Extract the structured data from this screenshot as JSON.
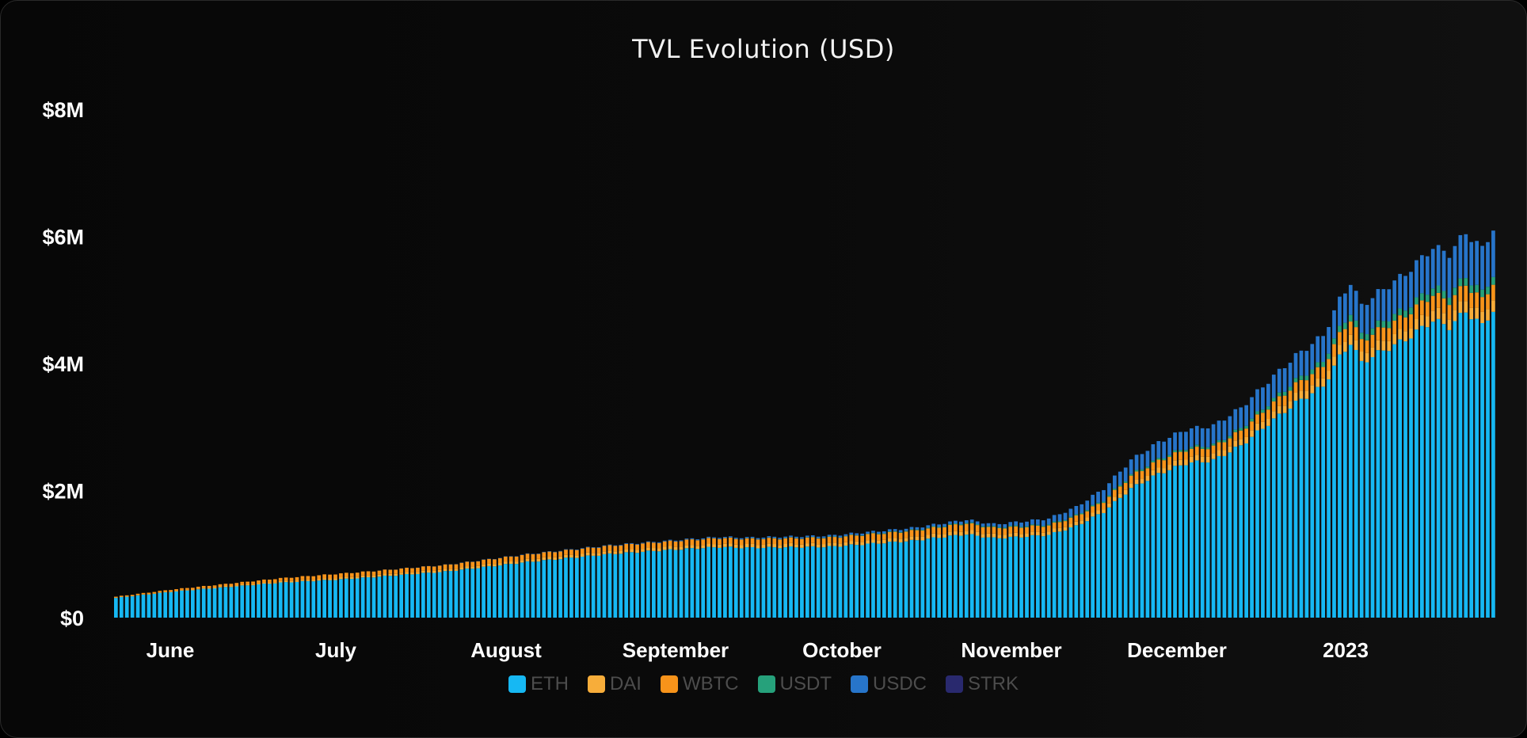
{
  "chart_data": {
    "type": "bar",
    "stacked": true,
    "title": "TVL Evolution (USD)",
    "xlabel": "",
    "ylabel": "",
    "ylim": [
      0,
      8000000
    ],
    "y_ticks": [
      0,
      2000000,
      4000000,
      6000000,
      8000000
    ],
    "y_tick_labels": [
      "$0",
      "$2M",
      "$4M",
      "$6M",
      "$8M"
    ],
    "x_tick_labels": [
      "June",
      "July",
      "August",
      "September",
      "October",
      "November",
      "December",
      "2023"
    ],
    "grid": false,
    "legend_position": "bottom",
    "n_bars": 252,
    "series": [
      {
        "name": "ETH",
        "color": "#16b8f3"
      },
      {
        "name": "DAI",
        "color": "#f7ad3a"
      },
      {
        "name": "WBTC",
        "color": "#f7931a"
      },
      {
        "name": "USDT",
        "color": "#26a17b"
      },
      {
        "name": "USDC",
        "color": "#2775ca"
      },
      {
        "name": "STRK",
        "color": "#29296e"
      }
    ],
    "total_anchors": [
      [
        0,
        330000
      ],
      [
        10,
        440000
      ],
      [
        30,
        620000
      ],
      [
        45,
        720000
      ],
      [
        60,
        830000
      ],
      [
        75,
        1000000
      ],
      [
        90,
        1140000
      ],
      [
        105,
        1240000
      ],
      [
        110,
        1270000
      ],
      [
        115,
        1260000
      ],
      [
        130,
        1290000
      ],
      [
        145,
        1410000
      ],
      [
        155,
        1540000
      ],
      [
        160,
        1470000
      ],
      [
        165,
        1510000
      ],
      [
        170,
        1560000
      ],
      [
        175,
        1740000
      ],
      [
        180,
        2030000
      ],
      [
        185,
        2480000
      ],
      [
        190,
        2760000
      ],
      [
        195,
        2960000
      ],
      [
        200,
        3020000
      ],
      [
        205,
        3300000
      ],
      [
        210,
        3720000
      ],
      [
        215,
        4120000
      ],
      [
        220,
        4440000
      ],
      [
        223,
        5000000
      ],
      [
        225,
        5280000
      ],
      [
        227,
        4910000
      ],
      [
        230,
        5110000
      ],
      [
        235,
        5410000
      ],
      [
        240,
        5830000
      ],
      [
        243,
        5730000
      ],
      [
        246,
        6060000
      ],
      [
        249,
        5800000
      ],
      [
        251,
        6130000
      ]
    ],
    "share_anchors": [
      [
        0,
        [
          0.94,
          0.02,
          0.04,
          0.0,
          0.0,
          0.0
        ]
      ],
      [
        40,
        [
          0.87,
          0.04,
          0.09,
          0.0,
          0.0,
          0.0
        ]
      ],
      [
        100,
        [
          0.88,
          0.04,
          0.07,
          0.0,
          0.01,
          0.0
        ]
      ],
      [
        160,
        [
          0.85,
          0.04,
          0.07,
          0.01,
          0.03,
          0.0
        ]
      ],
      [
        180,
        [
          0.82,
          0.03,
          0.05,
          0.01,
          0.09,
          0.0
        ]
      ],
      [
        200,
        [
          0.82,
          0.03,
          0.04,
          0.01,
          0.1,
          0.0
        ]
      ],
      [
        225,
        [
          0.82,
          0.03,
          0.04,
          0.02,
          0.09,
          0.0
        ]
      ],
      [
        251,
        [
          0.79,
          0.03,
          0.04,
          0.02,
          0.12,
          0.0
        ]
      ]
    ]
  }
}
